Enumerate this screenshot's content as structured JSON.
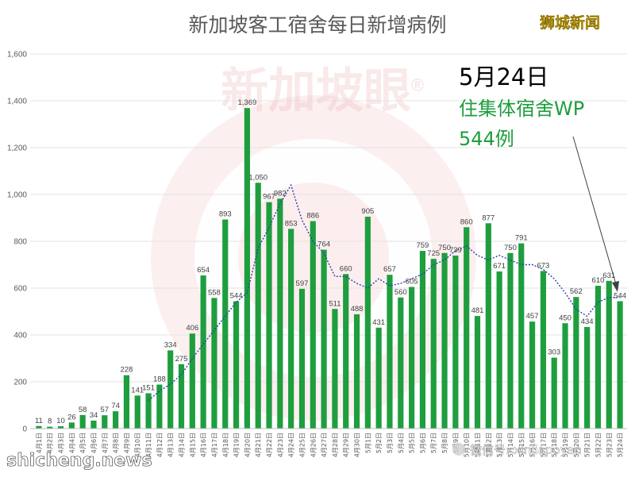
{
  "chart_data": {
    "type": "bar",
    "title": "新加坡客工宿舍每日新增病例",
    "ylim": [
      0,
      1600
    ],
    "yticks": [
      "0",
      "200",
      "400",
      "600",
      "800",
      "1,000",
      "1,200",
      "1,400",
      "1,600"
    ],
    "grid": true,
    "bar_color": "#1e9e3e",
    "trend_color": "#2b3fae",
    "categories": [
      "4月1日",
      "4月2日",
      "4月3日",
      "4月4日",
      "4月5日",
      "4月6日",
      "4月7日",
      "4月8日",
      "4月9日",
      "4月10日",
      "4月11日",
      "4月12日",
      "4月13日",
      "4月14日",
      "4月15日",
      "4月16日",
      "4月17日",
      "4月18日",
      "4月19日",
      "4月20日",
      "4月21日",
      "4月22日",
      "4月23日",
      "4月24日",
      "4月25日",
      "4月26日",
      "4月27日",
      "4月28日",
      "4月29日",
      "4月30日",
      "5月1日",
      "5月2日",
      "5月3日",
      "5月4日",
      "5月5日",
      "5月6日",
      "5月7日",
      "5月8日",
      "5月9日",
      "5月10日",
      "5月11日",
      "5月12日",
      "5月13日",
      "5月14日",
      "5月15日",
      "5月16日",
      "5月17日",
      "5月18日",
      "5月19日",
      "5月20日",
      "5月21日",
      "5月22日",
      "5月23日",
      "5月24日"
    ],
    "values": [
      11,
      8,
      10,
      26,
      58,
      34,
      57,
      74,
      228,
      141,
      151,
      188,
      334,
      275,
      406,
      654,
      558,
      893,
      544,
      1369,
      1050,
      967,
      982,
      853,
      597,
      886,
      764,
      511,
      660,
      488,
      905,
      431,
      657,
      560,
      605,
      759,
      725,
      750,
      739,
      860,
      481,
      877,
      671,
      750,
      791,
      457,
      673,
      303,
      450,
      562,
      434,
      610,
      631,
      544
    ],
    "trend_values": [
      null,
      null,
      null,
      null,
      null,
      null,
      null,
      null,
      null,
      null,
      120,
      160,
      190,
      230,
      300,
      360,
      420,
      480,
      540,
      580,
      770,
      860,
      960,
      1040,
      890,
      800,
      750,
      650,
      650,
      620,
      600,
      640,
      610,
      620,
      640,
      660,
      700,
      720,
      760,
      780,
      740,
      720,
      740,
      720,
      700,
      700,
      680,
      640,
      580,
      510,
      480,
      540,
      560,
      560
    ],
    "annotations": {
      "date": "5月24日",
      "desc_line1": "住集体宿舍WP",
      "desc_line2": "544例"
    }
  },
  "branding": {
    "top_right": "狮城新闻",
    "watermark": "新加坡眼",
    "watermark_mark": "®",
    "site": "shicheng.news",
    "wechat": "微信号: xinjiapoyan"
  }
}
